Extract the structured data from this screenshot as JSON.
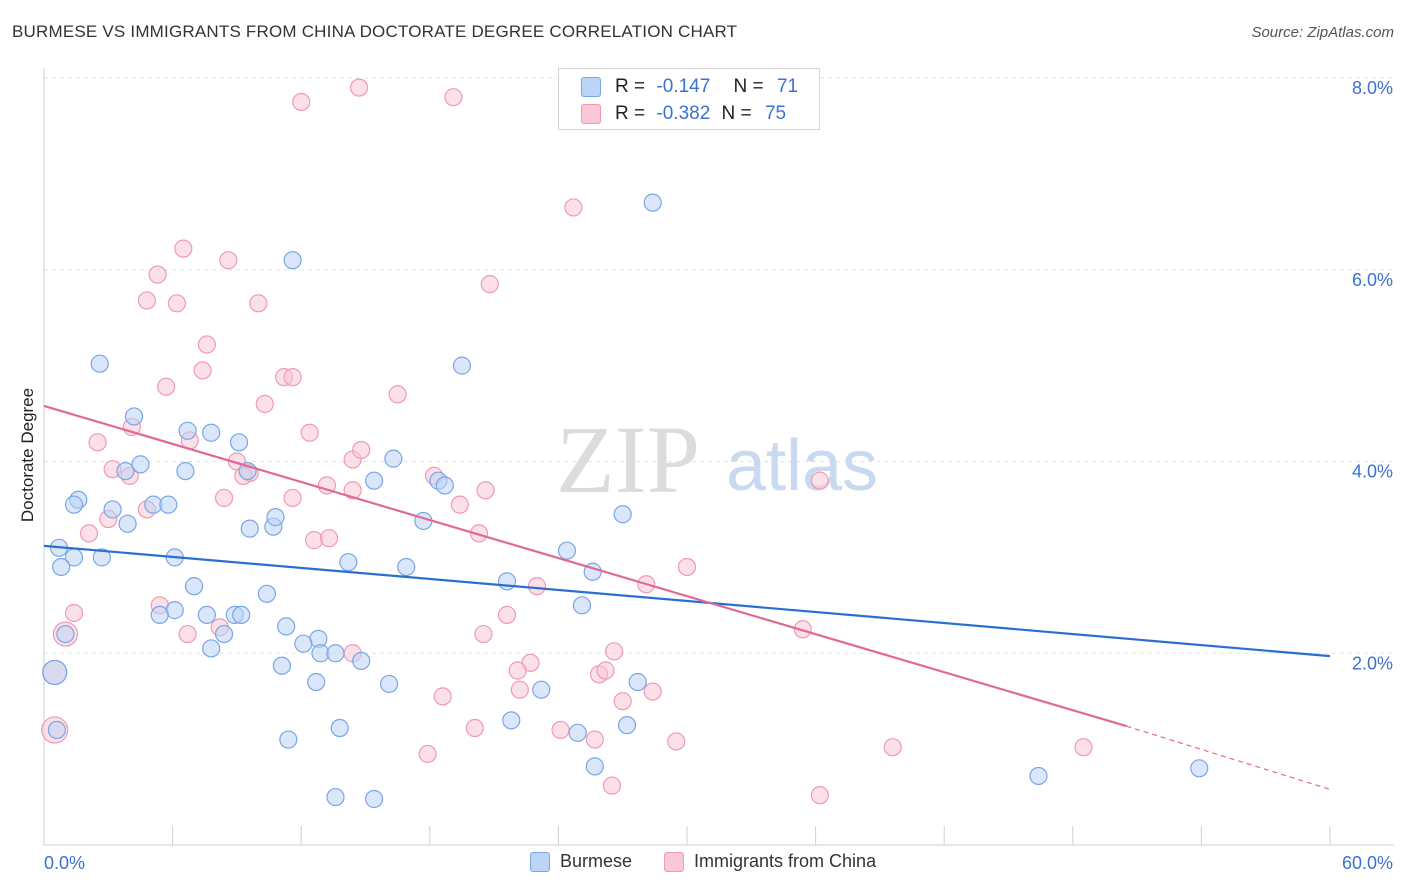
{
  "header": {
    "title": "BURMESE VS IMMIGRANTS FROM CHINA DOCTORATE DEGREE CORRELATION CHART",
    "source": "Source: ZipAtlas.com"
  },
  "watermark": {
    "zip": "ZIP",
    "atlas": "atlas"
  },
  "stats": {
    "burmese": {
      "r_label": "R =",
      "r_value": "-0.147",
      "n_label": "N =",
      "n_value": "71"
    },
    "china": {
      "r_label": "R =",
      "r_value": "-0.382",
      "n_label": "N =",
      "n_value": "75"
    }
  },
  "legend": {
    "burmese": "Burmese",
    "china": "Immigrants from China"
  },
  "colors": {
    "blue_fill": "#bcd4f6",
    "blue_stroke": "#7aa6e6",
    "blue_line": "#2a6fd0",
    "pink_fill": "#f9c7d6",
    "pink_stroke": "#ef9ab4",
    "pink_line": "#e06a95",
    "tick_color": "#3a72d2"
  },
  "chart_data": {
    "type": "scatter",
    "ylabel": "Doctorate Degree",
    "xlim": [
      0,
      60
    ],
    "ylim": [
      0,
      8.0
    ],
    "x_tick_labels": [
      "0.0%",
      "60.0%"
    ],
    "y_ticks": [
      2.0,
      4.0,
      6.0,
      8.0
    ],
    "y_tick_labels": [
      "2.0%",
      "4.0%",
      "6.0%",
      "8.0%"
    ],
    "grid": true,
    "series": [
      {
        "name": "Burmese",
        "color": "#7aa6e6",
        "trend": {
          "x": [
            0,
            60
          ],
          "y": [
            3.12,
            1.97
          ]
        },
        "points": [
          [
            1.0,
            2.2
          ],
          [
            0.5,
            1.8
          ],
          [
            2.6,
            5.02
          ],
          [
            4.2,
            4.47
          ],
          [
            3.2,
            3.5
          ],
          [
            1.6,
            3.6
          ],
          [
            1.4,
            3.55
          ],
          [
            4.5,
            3.97
          ],
          [
            3.8,
            3.9
          ],
          [
            6.7,
            4.32
          ],
          [
            7.8,
            4.3
          ],
          [
            9.1,
            4.2
          ],
          [
            6.6,
            3.9
          ],
          [
            5.1,
            3.55
          ],
          [
            5.8,
            3.55
          ],
          [
            7.0,
            2.7
          ],
          [
            6.1,
            2.45
          ],
          [
            3.9,
            3.35
          ],
          [
            0.7,
            3.1
          ],
          [
            1.4,
            3.0
          ],
          [
            2.7,
            3.0
          ],
          [
            0.8,
            2.9
          ],
          [
            6.1,
            3.0
          ],
          [
            9.5,
            3.9
          ],
          [
            9.6,
            3.3
          ],
          [
            10.7,
            3.32
          ],
          [
            10.8,
            3.42
          ],
          [
            10.4,
            2.62
          ],
          [
            8.9,
            2.4
          ],
          [
            7.6,
            2.4
          ],
          [
            9.2,
            2.4
          ],
          [
            5.4,
            2.4
          ],
          [
            8.4,
            2.2
          ],
          [
            11.3,
            2.28
          ],
          [
            12.8,
            2.15
          ],
          [
            12.1,
            2.1
          ],
          [
            12.9,
            2.0
          ],
          [
            13.6,
            2.0
          ],
          [
            14.8,
            1.92
          ],
          [
            11.1,
            1.87
          ],
          [
            7.8,
            2.05
          ],
          [
            12.7,
            1.7
          ],
          [
            16.1,
            1.68
          ],
          [
            14.2,
            2.95
          ],
          [
            16.9,
            2.9
          ],
          [
            15.4,
            3.8
          ],
          [
            18.4,
            3.8
          ],
          [
            18.7,
            3.75
          ],
          [
            16.3,
            4.03
          ],
          [
            17.7,
            3.38
          ],
          [
            11.6,
            6.1
          ],
          [
            19.5,
            5.0
          ],
          [
            28.4,
            6.7
          ],
          [
            24.4,
            3.07
          ],
          [
            25.6,
            2.85
          ],
          [
            25.1,
            2.5
          ],
          [
            21.6,
            2.75
          ],
          [
            27.0,
            3.45
          ],
          [
            23.2,
            1.62
          ],
          [
            21.8,
            1.3
          ],
          [
            24.9,
            1.17
          ],
          [
            27.2,
            1.25
          ],
          [
            27.7,
            1.7
          ],
          [
            25.7,
            0.82
          ],
          [
            11.4,
            1.1
          ],
          [
            13.8,
            1.22
          ],
          [
            15.4,
            0.48
          ],
          [
            46.4,
            0.72
          ],
          [
            53.9,
            0.8
          ],
          [
            13.6,
            0.5
          ],
          [
            0.6,
            1.2
          ]
        ]
      },
      {
        "name": "Immigrants from China",
        "color": "#ef9ab4",
        "trend": {
          "x": [
            0,
            50.5
          ],
          "y": [
            4.58,
            1.24
          ],
          "dash_to": [
            60,
            0.58
          ]
        },
        "points": [
          [
            0.5,
            1.2
          ],
          [
            0.5,
            1.8
          ],
          [
            1.0,
            2.2
          ],
          [
            1.4,
            2.42
          ],
          [
            2.1,
            3.25
          ],
          [
            2.5,
            4.2
          ],
          [
            3.2,
            3.92
          ],
          [
            4.1,
            4.36
          ],
          [
            4.0,
            3.85
          ],
          [
            3.0,
            3.4
          ],
          [
            4.8,
            3.5
          ],
          [
            5.7,
            4.78
          ],
          [
            6.8,
            4.22
          ],
          [
            7.4,
            4.95
          ],
          [
            7.6,
            5.22
          ],
          [
            6.2,
            5.65
          ],
          [
            4.8,
            5.68
          ],
          [
            5.3,
            5.95
          ],
          [
            6.5,
            6.22
          ],
          [
            8.6,
            6.1
          ],
          [
            9.0,
            4.0
          ],
          [
            8.4,
            3.62
          ],
          [
            9.6,
            3.88
          ],
          [
            9.3,
            3.85
          ],
          [
            10.0,
            5.65
          ],
          [
            10.3,
            4.6
          ],
          [
            11.2,
            4.88
          ],
          [
            11.6,
            3.62
          ],
          [
            11.6,
            4.88
          ],
          [
            12.6,
            3.18
          ],
          [
            12.4,
            4.3
          ],
          [
            13.2,
            3.75
          ],
          [
            13.3,
            3.2
          ],
          [
            14.4,
            4.02
          ],
          [
            14.8,
            4.12
          ],
          [
            16.5,
            4.7
          ],
          [
            14.4,
            3.7
          ],
          [
            18.2,
            3.85
          ],
          [
            19.4,
            3.55
          ],
          [
            20.3,
            3.25
          ],
          [
            20.6,
            3.7
          ],
          [
            23.0,
            2.7
          ],
          [
            20.5,
            2.2
          ],
          [
            21.6,
            2.4
          ],
          [
            14.4,
            2.0
          ],
          [
            22.7,
            1.9
          ],
          [
            22.2,
            1.62
          ],
          [
            24.1,
            1.2
          ],
          [
            25.9,
            1.78
          ],
          [
            26.2,
            1.82
          ],
          [
            26.6,
            2.02
          ],
          [
            25.7,
            1.1
          ],
          [
            27.0,
            1.5
          ],
          [
            28.4,
            1.6
          ],
          [
            29.5,
            1.08
          ],
          [
            30.0,
            2.9
          ],
          [
            35.4,
            2.25
          ],
          [
            36.2,
            3.8
          ],
          [
            36.2,
            0.52
          ],
          [
            39.6,
            1.02
          ],
          [
            48.5,
            1.02
          ],
          [
            20.1,
            1.22
          ],
          [
            17.9,
            0.95
          ],
          [
            18.6,
            1.55
          ],
          [
            26.5,
            0.62
          ],
          [
            24.7,
            6.65
          ],
          [
            20.8,
            5.85
          ],
          [
            12.0,
            7.75
          ],
          [
            14.7,
            7.9
          ],
          [
            19.1,
            7.8
          ],
          [
            5.4,
            2.5
          ],
          [
            6.7,
            2.2
          ],
          [
            8.2,
            2.27
          ],
          [
            28.1,
            2.72
          ],
          [
            22.1,
            1.82
          ]
        ]
      }
    ]
  }
}
